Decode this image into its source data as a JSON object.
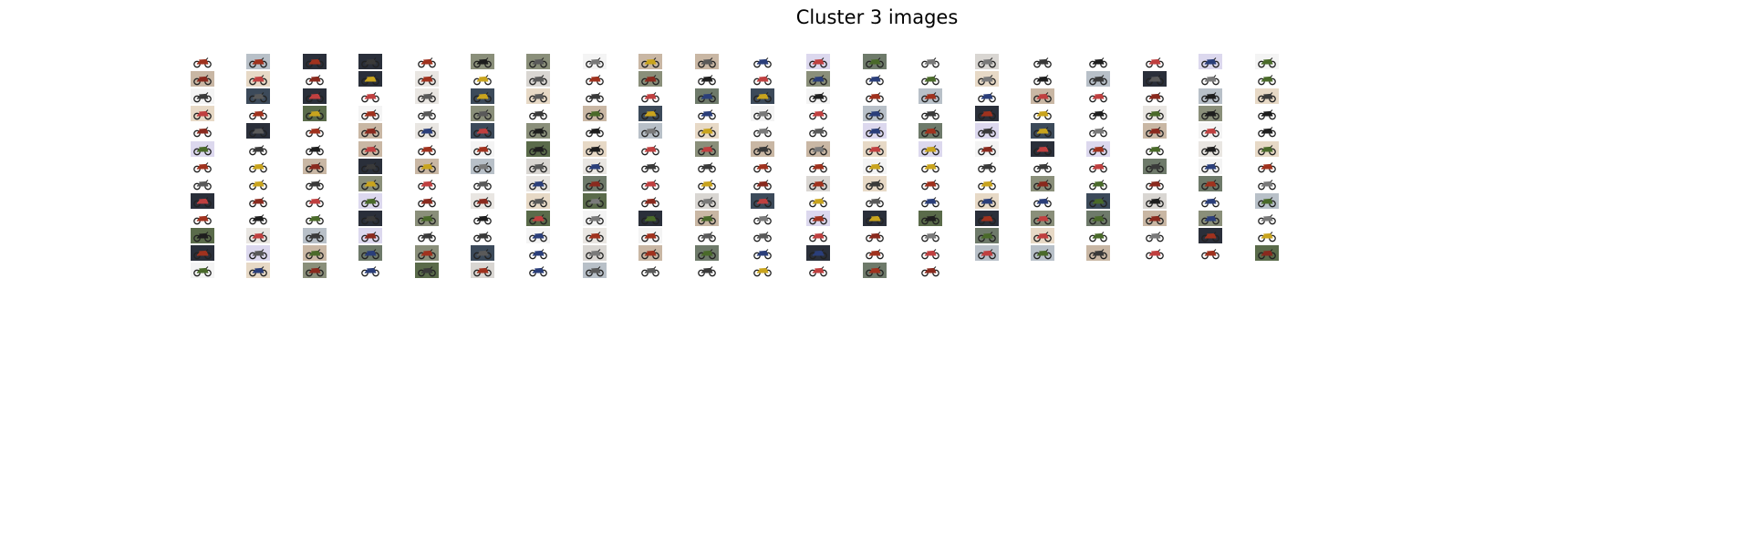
{
  "figure": {
    "title": "Cluster 3 images",
    "grid_columns": 20,
    "grid_rows": 13,
    "image_count": 254,
    "thumbnail_icon": "motorcycle-photo-icon",
    "background_color": "#ffffff"
  },
  "palette": {
    "backgrounds": [
      "#f4f4f4",
      "#e9e6e2",
      "#d9d6d2",
      "#b8c0c8",
      "#6e7a6a",
      "#3c4a5a",
      "#8a8f7a",
      "#c9b7a4",
      "#5a6b4a",
      "#2a2f3a",
      "#dcd8ee",
      "#e7d9c6"
    ],
    "bikes": [
      "#3a3a3a",
      "#8a2a1e",
      "#2b3f7a",
      "#c9a41e",
      "#5a5a5a",
      "#a0321e",
      "#1e1e1e",
      "#4a6a2a",
      "#7a7a7a",
      "#c04040"
    ]
  }
}
